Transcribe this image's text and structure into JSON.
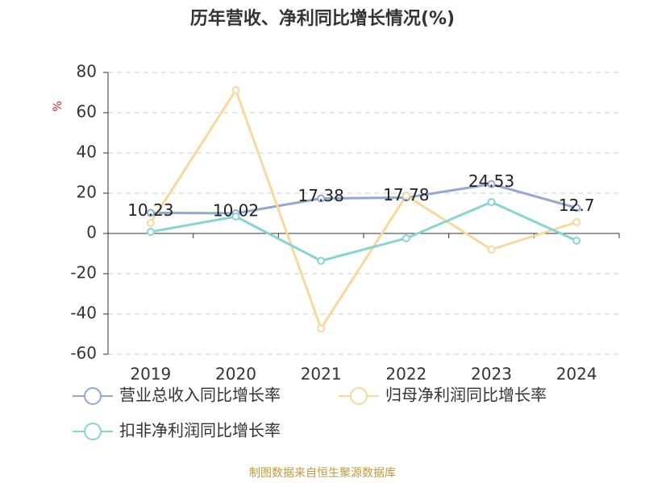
{
  "chart_data": {
    "type": "line",
    "title": "历年营收、净利同比增长情况(%)",
    "y_label": "%",
    "categories": [
      "2019",
      "2020",
      "2021",
      "2022",
      "2023",
      "2024"
    ],
    "series": [
      {
        "name": "营业总收入同比增长率",
        "color": "#8fa8d4",
        "values": [
          10.23,
          10.02,
          17.38,
          17.78,
          24.53,
          12.7
        ],
        "labels": true
      },
      {
        "name": "归母净利润同比增长率",
        "color": "#f8d89c",
        "values": [
          5.2,
          71.2,
          -47.2,
          18.8,
          -8,
          5.6
        ]
      },
      {
        "name": "扣非净利润同比增长率",
        "color": "#86d4d6",
        "values": [
          0.8,
          8.4,
          -13.6,
          -2.4,
          15.6,
          -3.6
        ]
      }
    ],
    "ylim": [
      -60,
      80
    ],
    "yticks": [
      -60,
      -40,
      -20,
      0,
      20,
      40,
      60,
      80
    ],
    "grid": true,
    "source": "制图数据来自恒生聚源数据库"
  }
}
